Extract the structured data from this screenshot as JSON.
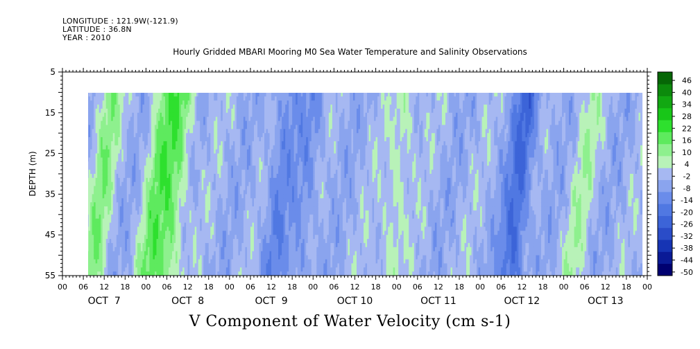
{
  "header": {
    "longitude": "LONGITUDE : 121.9W(-121.9)",
    "latitude": "LATITUDE : 36.8N",
    "year": "YEAR : 2010"
  },
  "chart_data": {
    "type": "heatmap",
    "title": "Hourly Gridded MBARI Mooring M0 Sea Water Temperature and Salinity Observations",
    "variable_title": "V Component of Water Velocity (cm s-1)",
    "ylabel": "DEPTH (m)",
    "y_reversed": true,
    "ylim": [
      5,
      55
    ],
    "y_ticks": [
      5,
      15,
      25,
      35,
      45,
      55
    ],
    "data_depth_range": [
      10,
      55
    ],
    "x_start": "OCT 7 00",
    "x_end": "OCT 14 00",
    "data_time_start": "OCT 7 06",
    "hour_tick_labels": [
      "00",
      "06",
      "12",
      "18",
      "00",
      "06",
      "12",
      "18",
      "00",
      "06",
      "12",
      "18",
      "00",
      "06",
      "12",
      "18",
      "00",
      "06",
      "12",
      "18",
      "00",
      "06",
      "12",
      "18",
      "00",
      "06",
      "12",
      "18",
      "00"
    ],
    "day_labels": [
      "OCT  7",
      "OCT  8",
      "OCT  9",
      "OCT 10",
      "OCT 11",
      "OCT 12",
      "OCT 13"
    ],
    "colorbar": {
      "levels": [
        -50,
        -44,
        -38,
        -32,
        -26,
        -20,
        -14,
        -8,
        -2,
        4,
        10,
        16,
        22,
        28,
        34,
        40,
        46
      ],
      "tick_labels": [
        "46",
        "40",
        "34",
        "28",
        "22",
        "16",
        "10",
        "4",
        "-2",
        "-8",
        "-14",
        "-20",
        "-26",
        "-32",
        "-38",
        "-44",
        "-50"
      ],
      "colors_low_to_high": [
        "#000070",
        "#0a1a96",
        "#1634b4",
        "#2a4cc8",
        "#3c64d8",
        "#5078e2",
        "#6a8cea",
        "#8aa4ee",
        "#a6b8f2",
        "#b8f2b8",
        "#8ef08e",
        "#5eea5e",
        "#2ee02e",
        "#18c618",
        "#12a812",
        "#0c8a0c",
        "#066606"
      ]
    },
    "features": [
      {
        "day": 7,
        "hour": 14,
        "v": 14
      },
      {
        "day": 8,
        "hour": 6,
        "v": 16
      },
      {
        "day": 8,
        "hour": 11,
        "v": 18
      },
      {
        "day": 9,
        "hour": 17,
        "v": -10
      },
      {
        "day": 10,
        "hour": 1,
        "v": -8
      },
      {
        "day": 11,
        "hour": 3,
        "v": 10
      },
      {
        "day": 12,
        "hour": 14,
        "v": -20
      },
      {
        "day": 13,
        "hour": 8,
        "v": 8
      }
    ]
  }
}
